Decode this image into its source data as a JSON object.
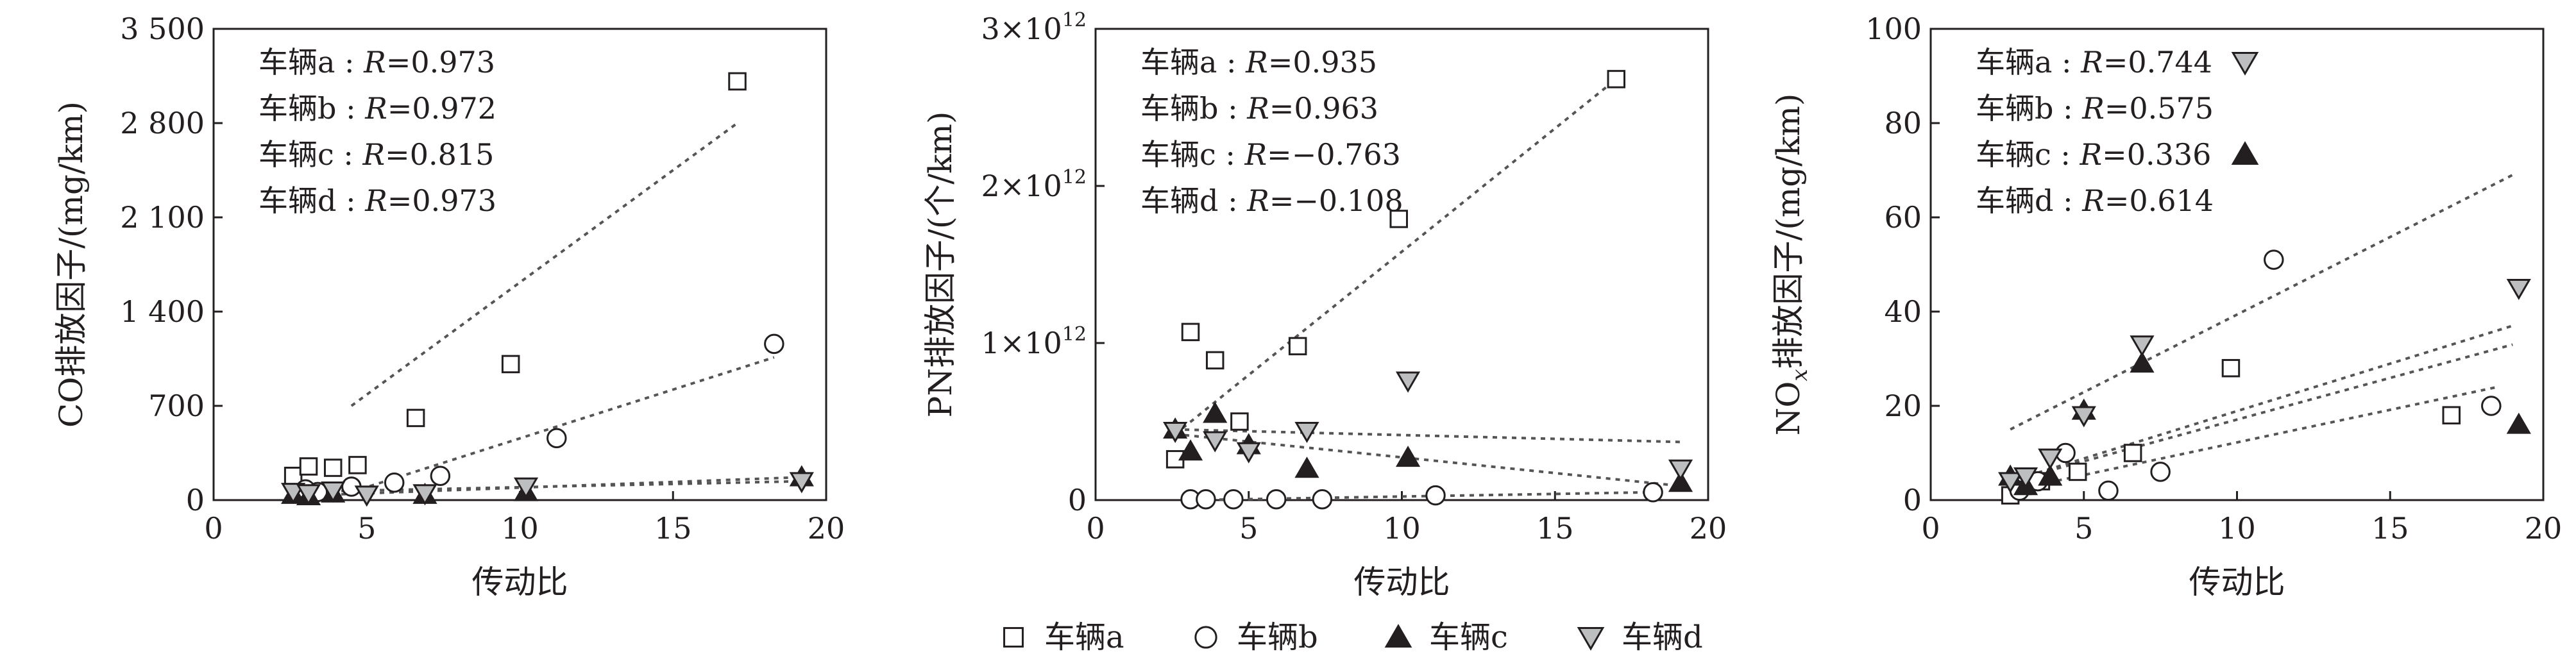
{
  "chart_data": [
    {
      "type": "scatter",
      "xlabel": "传动比",
      "ylabel": "CO排放因子/(mg/km)",
      "xlim": [
        0,
        20
      ],
      "ylim": [
        0,
        3500
      ],
      "xticks": [
        "0",
        "5",
        "10",
        "15",
        "20"
      ],
      "yticks": [
        "0",
        "700",
        "1 400",
        "2 100",
        "2 800",
        "3 500"
      ],
      "annotations": [
        {
          "prefix": "车辆a : ",
          "r": "R",
          "value": "=0.973"
        },
        {
          "prefix": "车辆b : ",
          "r": "R",
          "value": "=0.972"
        },
        {
          "prefix": "车辆c : ",
          "r": "R",
          "value": "=0.815"
        },
        {
          "prefix": "车辆d : ",
          "r": "R",
          "value": "=0.973"
        }
      ],
      "series": [
        {
          "name": "车辆a",
          "marker": "square",
          "points": [
            [
              2.6,
              180
            ],
            [
              3.1,
              250
            ],
            [
              3.9,
              240
            ],
            [
              4.7,
              260
            ],
            [
              6.6,
              610
            ],
            [
              9.7,
              1010
            ],
            [
              17.1,
              3110
            ]
          ],
          "trend": [
            [
              4.5,
              700
            ],
            [
              17.1,
              2800
            ]
          ]
        },
        {
          "name": "车辆b",
          "marker": "circle",
          "points": [
            [
              3.0,
              80
            ],
            [
              3.4,
              60
            ],
            [
              4.5,
              100
            ],
            [
              5.9,
              130
            ],
            [
              7.4,
              180
            ],
            [
              11.2,
              460
            ],
            [
              18.3,
              1160
            ]
          ],
          "trend": [
            [
              4.5,
              60
            ],
            [
              18.3,
              1060
            ]
          ]
        },
        {
          "name": "车辆c",
          "marker": "triangle-up",
          "points": [
            [
              2.6,
              40
            ],
            [
              3.1,
              30
            ],
            [
              3.9,
              50
            ],
            [
              6.9,
              40
            ],
            [
              10.2,
              60
            ],
            [
              19.2,
              170
            ]
          ],
          "trend": [
            [
              2.6,
              30
            ],
            [
              19.2,
              170
            ]
          ]
        },
        {
          "name": "车辆d",
          "marker": "triangle-down",
          "points": [
            [
              2.6,
              60
            ],
            [
              3.1,
              50
            ],
            [
              3.9,
              70
            ],
            [
              5.0,
              40
            ],
            [
              6.9,
              50
            ],
            [
              10.2,
              100
            ],
            [
              19.2,
              140
            ]
          ],
          "trend": [
            [
              2.6,
              60
            ],
            [
              19.2,
              140
            ]
          ]
        }
      ]
    },
    {
      "type": "scatter",
      "xlabel": "传动比",
      "ylabel": "PN排放因子/(个/km)",
      "xlim": [
        0,
        20
      ],
      "ylim": [
        0,
        3000000000000.0
      ],
      "xticks": [
        "0",
        "5",
        "10",
        "15",
        "20"
      ],
      "yticks": [
        "0",
        "1×10",
        "2×10",
        "3×10"
      ],
      "ytick_exp": "12",
      "annotations": [
        {
          "prefix": "车辆a : ",
          "r": "R",
          "value": "=0.935"
        },
        {
          "prefix": "车辆b : ",
          "r": "R",
          "value": "=0.963"
        },
        {
          "prefix": "车辆c : ",
          "r": "R",
          "value": "=−0.763"
        },
        {
          "prefix": "车辆d : ",
          "r": "R",
          "value": "=−0.108"
        }
      ],
      "series": [
        {
          "name": "车辆a",
          "marker": "square",
          "points": [
            [
              2.6,
              260000000000.0
            ],
            [
              3.1,
              1070000000000.0
            ],
            [
              3.9,
              890000000000.0
            ],
            [
              4.7,
              500000000000.0
            ],
            [
              6.6,
              980000000000.0
            ],
            [
              9.9,
              1790000000000.0
            ],
            [
              17.0,
              2680000000000.0
            ]
          ],
          "trend": [
            [
              2.6,
              420000000000.0
            ],
            [
              17.0,
              2680000000000.0
            ]
          ]
        },
        {
          "name": "车辆b",
          "marker": "circle",
          "points": [
            [
              3.1,
              5000000000.0
            ],
            [
              3.6,
              5000000000.0
            ],
            [
              4.5,
              5000000000.0
            ],
            [
              5.9,
              5000000000.0
            ],
            [
              7.4,
              5000000000.0
            ],
            [
              11.1,
              30000000000.0
            ],
            [
              18.2,
              50000000000.0
            ]
          ],
          "trend": [
            [
              3.1,
              0
            ],
            [
              18.2,
              50000000000.0
            ]
          ]
        },
        {
          "name": "车辆c",
          "marker": "triangle-up",
          "points": [
            [
              2.6,
              450000000000.0
            ],
            [
              3.1,
              310000000000.0
            ],
            [
              3.9,
              550000000000.0
            ],
            [
              5.0,
              350000000000.0
            ],
            [
              6.9,
              200000000000.0
            ],
            [
              10.2,
              270000000000.0
            ],
            [
              19.1,
              110000000000.0
            ]
          ],
          "trend": [
            [
              2.6,
              420000000000.0
            ],
            [
              19.1,
              90000000000.0
            ]
          ]
        },
        {
          "name": "车辆d",
          "marker": "triangle-down",
          "points": [
            [
              2.6,
              440000000000.0
            ],
            [
              3.9,
              380000000000.0
            ],
            [
              5.0,
              310000000000.0
            ],
            [
              6.9,
              440000000000.0
            ],
            [
              10.2,
              760000000000.0
            ],
            [
              19.1,
              200000000000.0
            ]
          ],
          "trend": [
            [
              2.6,
              450000000000.0
            ],
            [
              19.1,
              370000000000.0
            ]
          ]
        }
      ]
    },
    {
      "type": "scatter",
      "xlabel": "传动比",
      "ylabel": "NO",
      "ylabel_sub": "x",
      "ylabel_rest": "排放因子/(mg/km)",
      "xlim": [
        0,
        20
      ],
      "ylim": [
        0,
        100
      ],
      "xticks": [
        "0",
        "5",
        "10",
        "15",
        "20"
      ],
      "yticks": [
        "0",
        "20",
        "40",
        "60",
        "80",
        "100"
      ],
      "annotations": [
        {
          "prefix": "车辆a : ",
          "r": "R",
          "value": "=0.744",
          "marker": "triangle-down"
        },
        {
          "prefix": "车辆b : ",
          "r": "R",
          "value": "=0.575"
        },
        {
          "prefix": "车辆c : ",
          "r": "R",
          "value": "=0.336",
          "marker": "triangle-up"
        },
        {
          "prefix": "车辆d : ",
          "r": "R",
          "value": "=0.614"
        }
      ],
      "series": [
        {
          "name": "车辆a",
          "marker": "square",
          "points": [
            [
              2.6,
              1
            ],
            [
              3.0,
              3
            ],
            [
              3.6,
              4
            ],
            [
              4.8,
              6
            ],
            [
              6.6,
              10
            ],
            [
              9.8,
              28
            ],
            [
              17.0,
              18
            ]
          ],
          "trend": [
            [
              2.6,
              2
            ],
            [
              18.5,
              24
            ]
          ]
        },
        {
          "name": "车辆b",
          "marker": "circle",
          "points": [
            [
              2.9,
              2
            ],
            [
              3.5,
              4
            ],
            [
              4.4,
              10
            ],
            [
              5.8,
              2
            ],
            [
              7.5,
              6
            ],
            [
              11.2,
              51
            ],
            [
              18.3,
              20
            ]
          ],
          "trend": [
            [
              2.6,
              4
            ],
            [
              19.0,
              33
            ]
          ]
        },
        {
          "name": "车辆c",
          "marker": "triangle-up",
          "points": [
            [
              2.6,
              5
            ],
            [
              3.1,
              3
            ],
            [
              3.9,
              5
            ],
            [
              5.0,
              19
            ],
            [
              6.9,
              29
            ],
            [
              19.2,
              16
            ]
          ],
          "trend": [
            [
              2.6,
              4
            ],
            [
              19.0,
              37
            ]
          ]
        },
        {
          "name": "车辆d",
          "marker": "triangle-down",
          "points": [
            [
              2.6,
              4
            ],
            [
              3.1,
              5
            ],
            [
              3.9,
              9
            ],
            [
              5.0,
              18
            ],
            [
              6.9,
              33
            ],
            [
              19.2,
              45
            ]
          ],
          "trend": [
            [
              2.6,
              15
            ],
            [
              19.0,
              69
            ]
          ]
        }
      ]
    }
  ],
  "legend": [
    {
      "label": "车辆a",
      "marker": "square"
    },
    {
      "label": "车辆b",
      "marker": "circle"
    },
    {
      "label": "车辆c",
      "marker": "triangle-up"
    },
    {
      "label": "车辆d",
      "marker": "triangle-down"
    }
  ],
  "colors": {
    "axis": "#231f20",
    "trend": "#555555",
    "triangle_up_fill": "#231f20",
    "triangle_down_fill": "#bcbec0",
    "open_fill": "#ffffff"
  }
}
